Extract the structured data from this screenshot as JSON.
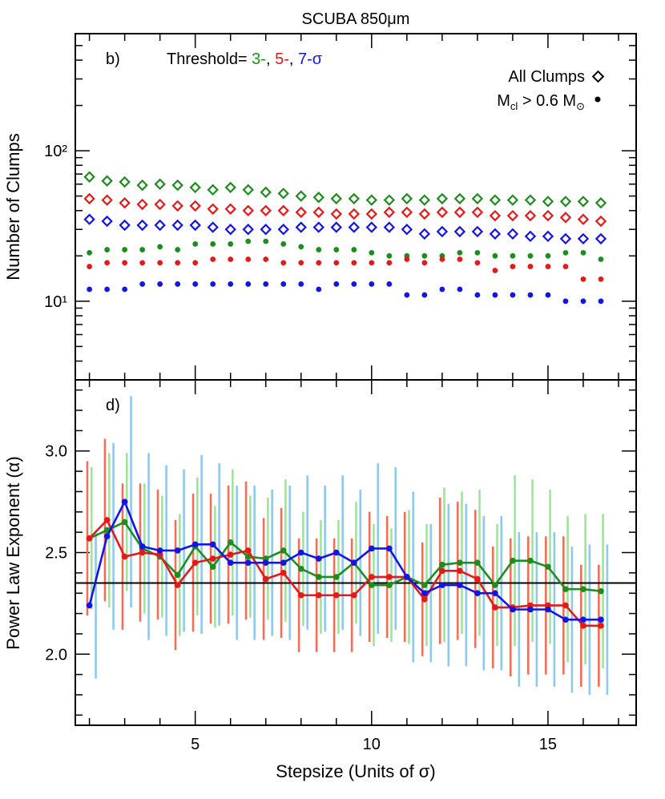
{
  "title": "SCUBA 850μm",
  "colors": {
    "green": "#1e8c1e",
    "red": "#e61919",
    "blue": "#1414e6",
    "green_err": "#98ea90",
    "red_err": "#ee7058",
    "blue_err": "#90c8ee",
    "axis": "#000000"
  },
  "chart_data": [
    {
      "panel": "top",
      "type": "scatter",
      "panel_label": "b)",
      "ylabel": "Number of Clumps",
      "yscale": "log",
      "ylim": [
        3,
        600
      ],
      "xlim": [
        1.6,
        17.5
      ],
      "yticks": [
        {
          "value": 10,
          "label": "10¹"
        },
        {
          "value": 100,
          "label": "10²"
        }
      ],
      "threshold_text": {
        "prefix": "Threshold= ",
        "t3": "3-",
        "sep1": ", ",
        "t5": "5-",
        "sep2": ", ",
        "t7": "7-σ"
      },
      "legend": {
        "all_clumps": "All Clumps",
        "mass_cut": "M_cl > 0.6 M_⊙",
        "mass_main": "M",
        "mass_sub": "cl",
        "mass_mid": " > 0.6 M",
        "mass_sun": "⊙"
      },
      "x": [
        2.0,
        2.5,
        3.0,
        3.5,
        4.0,
        4.5,
        5.0,
        5.5,
        6.0,
        6.5,
        7.0,
        7.5,
        8.0,
        8.5,
        9.0,
        9.5,
        10.0,
        10.5,
        11.0,
        11.5,
        12.0,
        12.5,
        13.0,
        13.5,
        14.0,
        14.5,
        15.0,
        15.5,
        16.0,
        16.5
      ],
      "series": [
        {
          "name": "3-σ All Clumps",
          "color": "green",
          "marker": "diamond",
          "values": [
            67,
            63,
            62,
            59,
            60,
            59,
            57,
            55,
            57,
            55,
            53,
            52,
            50,
            49,
            48,
            48,
            47,
            47,
            48,
            47,
            48,
            48,
            48,
            47,
            47,
            47,
            46,
            46,
            46,
            45
          ]
        },
        {
          "name": "5-σ All Clumps",
          "color": "red",
          "marker": "diamond",
          "values": [
            48,
            47,
            45,
            44,
            44,
            43,
            43,
            41,
            41,
            40,
            40,
            40,
            39,
            39,
            38,
            38,
            38,
            39,
            39,
            38,
            39,
            39,
            39,
            37,
            37,
            37,
            37,
            36,
            35,
            34
          ]
        },
        {
          "name": "7-σ All Clumps",
          "color": "blue",
          "marker": "diamond",
          "values": [
            35,
            34,
            32,
            32,
            32,
            32,
            32,
            31,
            30,
            30,
            30,
            30,
            31,
            31,
            31,
            31,
            31,
            31,
            30,
            28,
            29,
            29,
            29,
            28,
            28,
            27,
            27,
            26,
            26,
            26
          ]
        },
        {
          "name": "3-σ M_cl > 0.6",
          "color": "green",
          "marker": "dot",
          "values": [
            21,
            22,
            22,
            22,
            23,
            22,
            24,
            24,
            24,
            25,
            25,
            24,
            23,
            22,
            22,
            22,
            21,
            20,
            20,
            20,
            20,
            21,
            21,
            20,
            20,
            20,
            20,
            21,
            21,
            19
          ]
        },
        {
          "name": "5-σ M_cl > 0.6",
          "color": "red",
          "marker": "dot",
          "values": [
            17,
            18,
            18,
            18,
            18,
            18,
            18,
            19,
            19,
            19,
            19,
            18,
            18,
            18,
            18,
            18,
            18,
            18,
            19,
            18,
            19,
            19,
            18,
            16,
            17,
            17,
            17,
            17,
            14,
            14
          ]
        },
        {
          "name": "7-σ M_cl > 0.6",
          "color": "blue",
          "marker": "dot",
          "values": [
            12,
            12,
            12,
            13,
            13,
            13,
            13,
            13,
            13,
            13,
            13,
            13,
            13,
            12,
            13,
            13,
            13,
            13,
            11,
            11,
            12,
            12,
            11,
            11,
            11,
            11,
            11,
            10,
            10,
            10
          ]
        }
      ]
    },
    {
      "panel": "bottom",
      "type": "line",
      "panel_label": "d)",
      "ylabel": "Power Law Exponent (α)",
      "xlabel": "Stepsize (Units of σ)",
      "ylim": [
        1.65,
        3.35
      ],
      "xlim": [
        1.6,
        17.5
      ],
      "yticks": [
        2.0,
        2.5,
        3.0
      ],
      "xticks": [
        5,
        10,
        15
      ],
      "reference_line": 2.35,
      "x": [
        2.0,
        2.5,
        3.0,
        3.5,
        4.0,
        4.5,
        5.0,
        5.5,
        6.0,
        6.5,
        7.0,
        7.5,
        8.0,
        8.5,
        9.0,
        9.5,
        10.0,
        10.5,
        11.0,
        11.5,
        12.0,
        12.5,
        13.0,
        13.5,
        14.0,
        14.5,
        15.0,
        15.5,
        16.0,
        16.5
      ],
      "series": [
        {
          "name": "3-σ",
          "color": "green",
          "err_color": "green_err",
          "values": [
            2.57,
            2.61,
            2.65,
            2.52,
            2.48,
            2.39,
            2.53,
            2.43,
            2.55,
            2.48,
            2.47,
            2.51,
            2.42,
            2.38,
            2.38,
            2.45,
            2.34,
            2.34,
            2.38,
            2.34,
            2.44,
            2.45,
            2.45,
            2.34,
            2.46,
            2.46,
            2.43,
            2.32,
            2.32,
            2.31
          ],
          "err": [
            0.35,
            0.38,
            0.34,
            0.32,
            0.3,
            0.3,
            0.34,
            0.3,
            0.36,
            0.3,
            0.3,
            0.35,
            0.28,
            0.28,
            0.28,
            0.3,
            0.3,
            0.28,
            0.33,
            0.3,
            0.38,
            0.35,
            0.36,
            0.3,
            0.42,
            0.4,
            0.38,
            0.36,
            0.37,
            0.38
          ]
        },
        {
          "name": "5-σ",
          "color": "red",
          "err_color": "red_err",
          "values": [
            2.57,
            2.66,
            2.48,
            2.5,
            2.49,
            2.34,
            2.45,
            2.47,
            2.49,
            2.51,
            2.37,
            2.4,
            2.29,
            2.29,
            2.29,
            2.29,
            2.38,
            2.38,
            2.38,
            2.27,
            2.41,
            2.41,
            2.37,
            2.23,
            2.23,
            2.24,
            2.24,
            2.24,
            2.14,
            2.14
          ],
          "err": [
            0.38,
            0.4,
            0.36,
            0.34,
            0.32,
            0.32,
            0.34,
            0.32,
            0.34,
            0.34,
            0.3,
            0.32,
            0.28,
            0.28,
            0.28,
            0.28,
            0.32,
            0.3,
            0.32,
            0.28,
            0.36,
            0.34,
            0.34,
            0.3,
            0.34,
            0.34,
            0.34,
            0.34,
            0.3,
            0.3
          ]
        },
        {
          "name": "7-σ",
          "color": "blue",
          "err_color": "blue_err",
          "values": [
            2.24,
            2.58,
            2.75,
            2.53,
            2.51,
            2.51,
            2.54,
            2.54,
            2.45,
            2.45,
            2.45,
            2.45,
            2.5,
            2.47,
            2.5,
            2.45,
            2.52,
            2.52,
            2.38,
            2.3,
            2.34,
            2.34,
            2.3,
            2.3,
            2.22,
            2.22,
            2.22,
            2.17,
            2.17,
            2.17
          ],
          "err": [
            0.36,
            0.46,
            0.52,
            0.46,
            0.42,
            0.4,
            0.44,
            0.4,
            0.38,
            0.38,
            0.36,
            0.38,
            0.38,
            0.36,
            0.38,
            0.36,
            0.42,
            0.4,
            0.42,
            0.34,
            0.4,
            0.4,
            0.38,
            0.38,
            0.38,
            0.38,
            0.38,
            0.36,
            0.37,
            0.37
          ]
        }
      ]
    }
  ]
}
